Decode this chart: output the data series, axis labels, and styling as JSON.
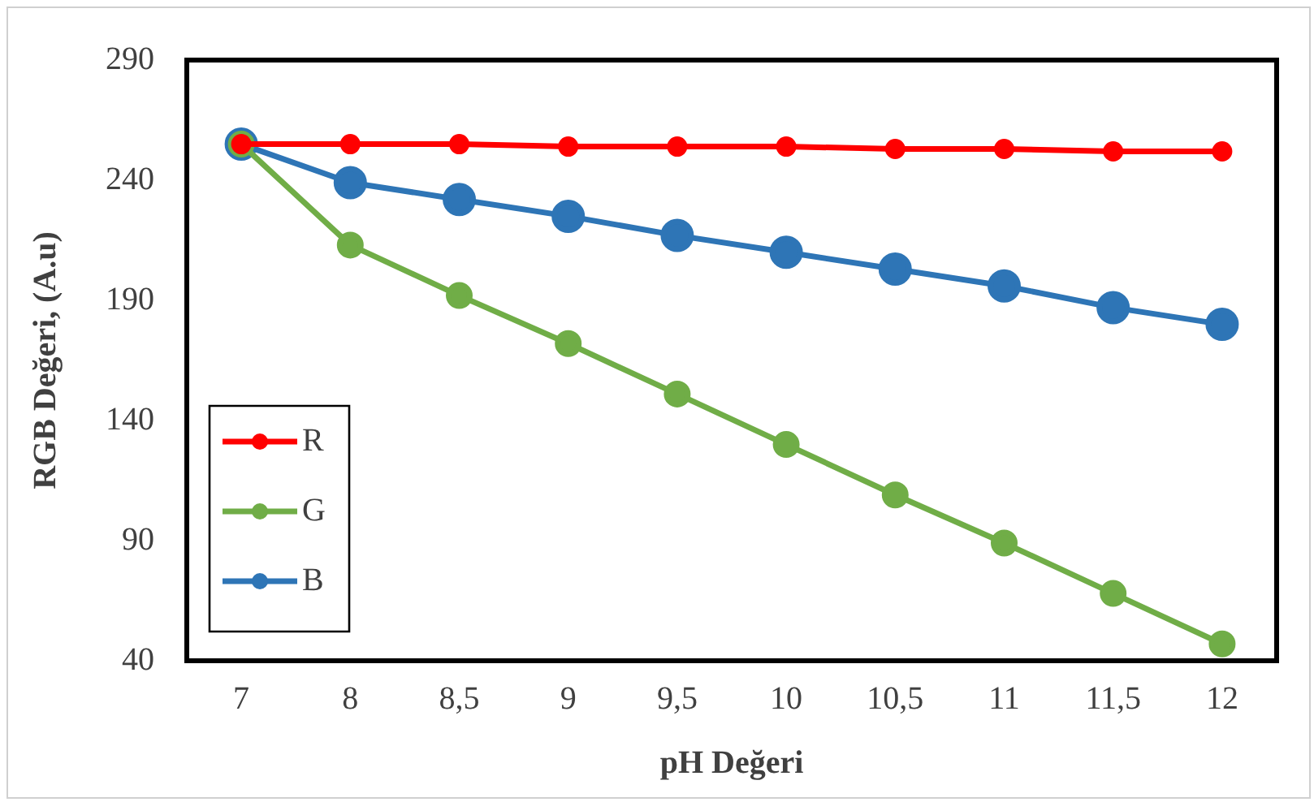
{
  "chart_data": {
    "type": "line",
    "xlabel": "pH Değeri",
    "ylabel": "RGB Değeri, (A.u)",
    "categories": [
      "7",
      "8",
      "8,5",
      "9",
      "9,5",
      "10",
      "10,5",
      "11",
      "11,5",
      "12"
    ],
    "series": [
      {
        "name": "R",
        "color": "#ff0000",
        "values": [
          255,
          255,
          255,
          254,
          254,
          254,
          253,
          253,
          252,
          252
        ]
      },
      {
        "name": "G",
        "color": "#70ad47",
        "values": [
          255,
          213,
          192,
          172,
          151,
          130,
          109,
          89,
          68,
          47
        ]
      },
      {
        "name": "B",
        "color": "#2e75b6",
        "values": [
          255,
          239,
          232,
          225,
          217,
          210,
          203,
          196,
          187,
          180
        ]
      }
    ],
    "ylim": [
      40,
      290
    ],
    "yticks": [
      40,
      90,
      140,
      190,
      240,
      290
    ],
    "grid": false,
    "legend": "bottom left",
    "marker": "circle",
    "line_style": "solid"
  }
}
